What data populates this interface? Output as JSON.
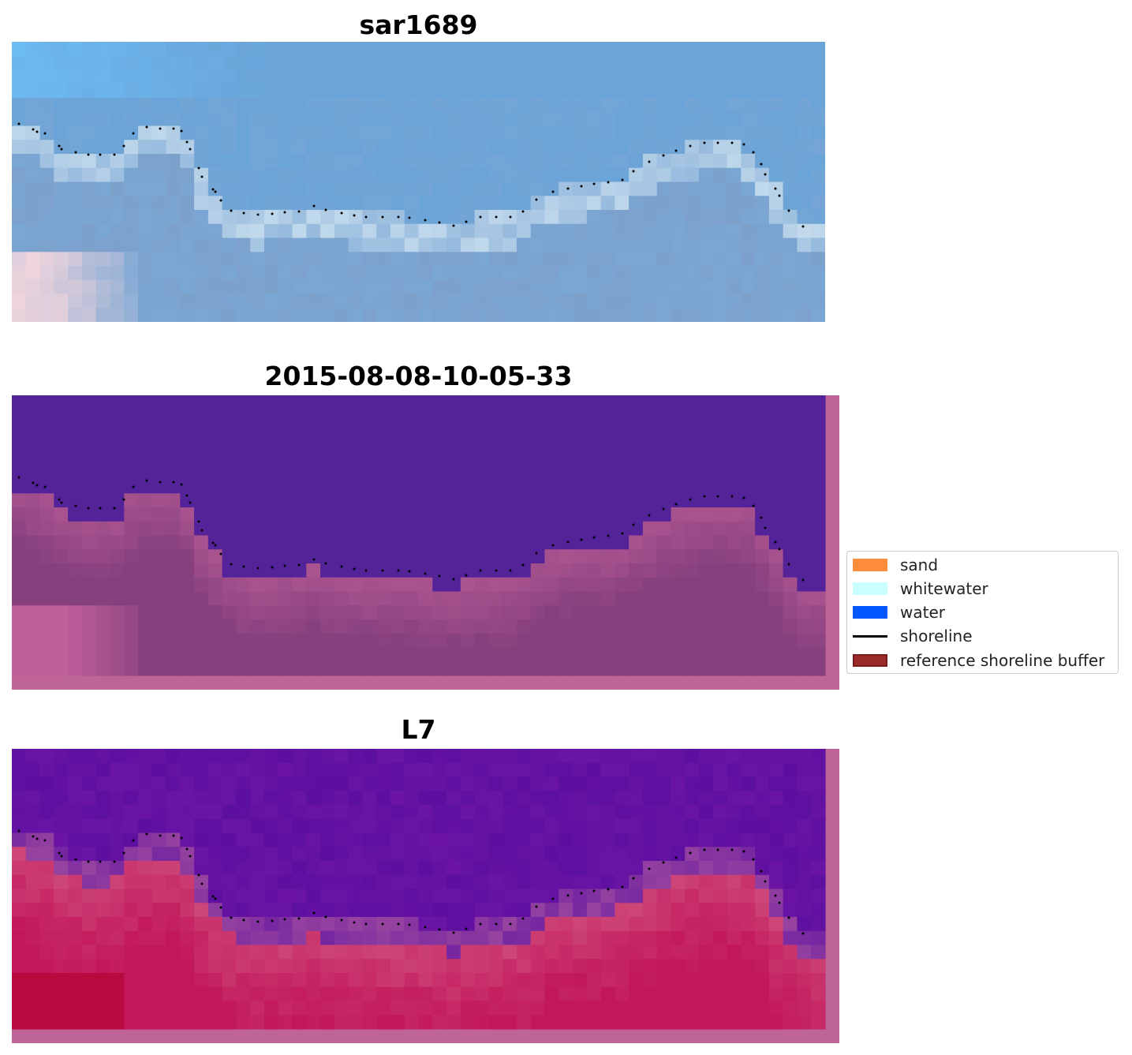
{
  "panels": [
    {
      "title": "sar1689"
    },
    {
      "title": "2015-08-08-10-05-33"
    },
    {
      "title": "L7"
    }
  ],
  "legend": {
    "items": [
      {
        "label": "sand",
        "kind": "patch",
        "color": "#ff8c3a",
        "edge": "#ff8c3a"
      },
      {
        "label": "whitewater",
        "kind": "patch",
        "color": "#c8ffff",
        "edge": "#c8ffff"
      },
      {
        "label": "water",
        "kind": "patch",
        "color": "#0057ff",
        "edge": "#0057ff"
      },
      {
        "label": "shoreline",
        "kind": "line",
        "color": "#000000"
      },
      {
        "label": "reference shoreline buffer",
        "kind": "patch",
        "color": "#9b2a2a",
        "edge": "#7a1c1c"
      }
    ]
  },
  "colors": {
    "rgb_sky_light": "#6cbcf4",
    "rgb_sky": "#6aa4d8",
    "rgb_water_mid": "#7aa6d4",
    "rgb_foam": "#e8f4f8",
    "rgb_sand_pink": "#f4d6dc",
    "class_water_purple": "#542399",
    "class_land_mauve": "#86407e",
    "class_land_pink": "#c0609a",
    "mndwi_low": "#5c0fa0",
    "mndwi_high": "#c2185b",
    "buffer_pink": "#be6496",
    "shoreline_dot": "#000000"
  }
}
